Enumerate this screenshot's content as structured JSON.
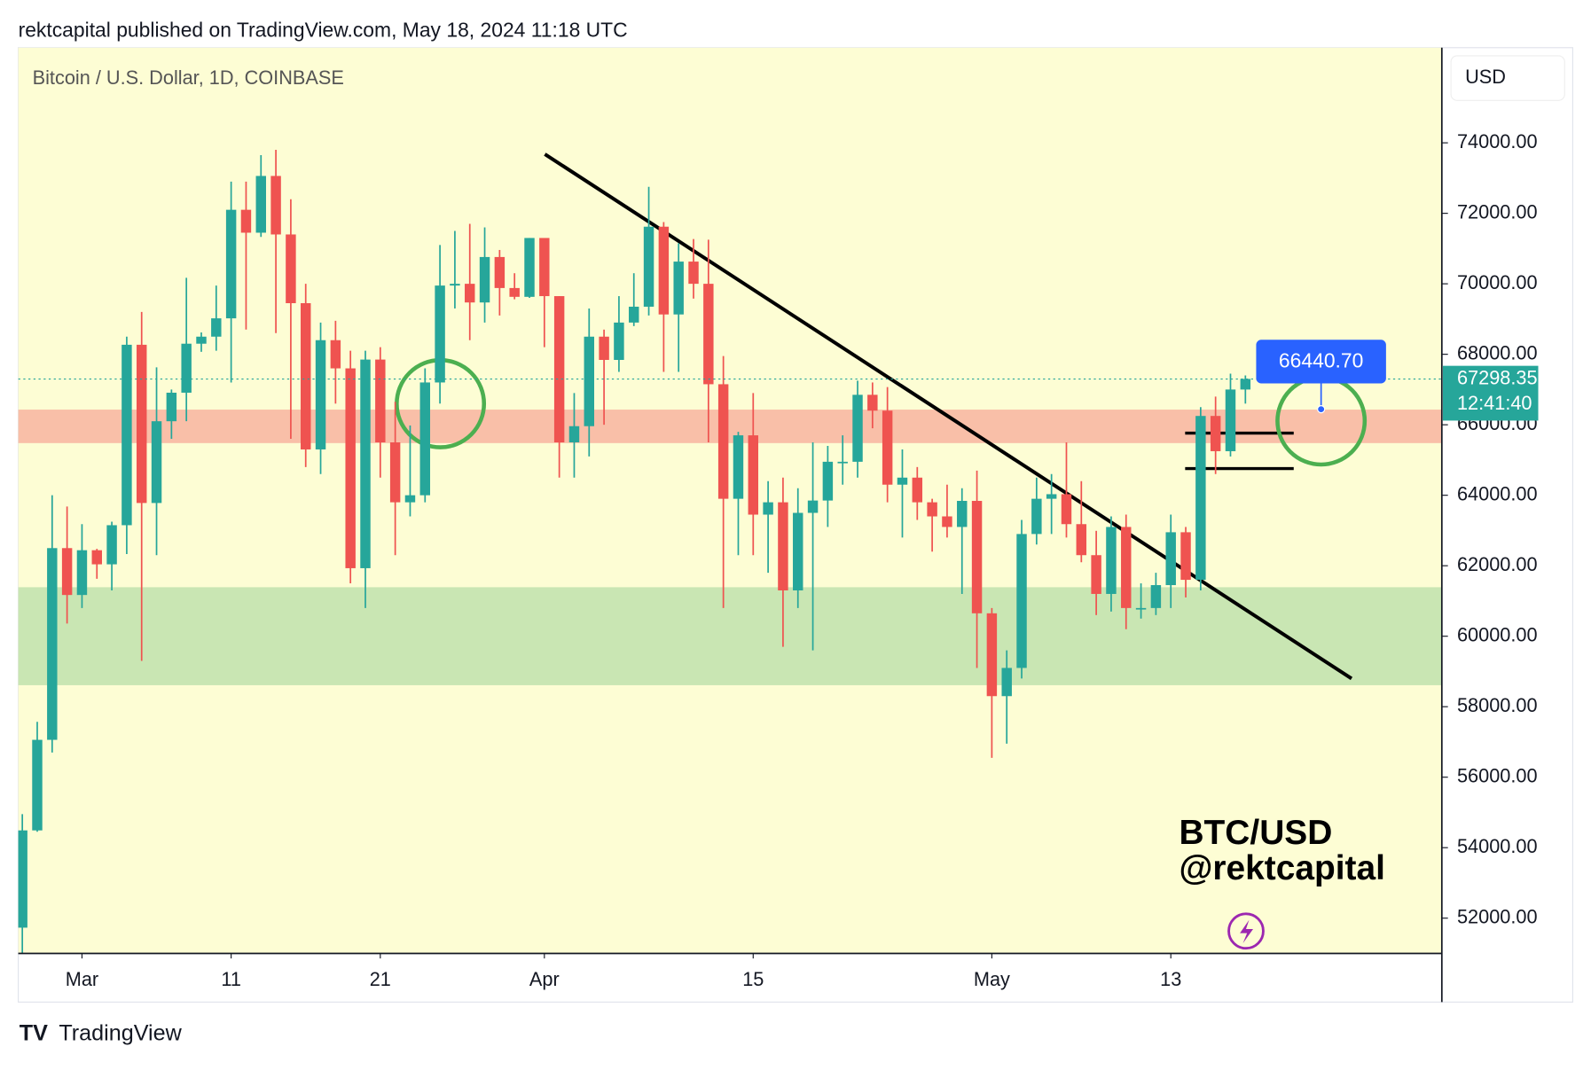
{
  "header": {
    "text": "rektcapital published on TradingView.com, May 18, 2024 11:18 UTC"
  },
  "footer": {
    "brand": "TradingView"
  },
  "chart_data": {
    "type": "candlestick",
    "symbol": "Bitcoin / U.S. Dollar, 1D, COINBASE",
    "currency": "USD",
    "up_color": "#26a69a",
    "down_color": "#ef5350",
    "x": [
      "Feb 26",
      "Feb 27",
      "Feb 28",
      "Feb 29",
      "Mar 1",
      "Mar 2",
      "Mar 3",
      "Mar 4",
      "Mar 5",
      "Mar 6",
      "Mar 7",
      "Mar 8",
      "Mar 9",
      "Mar 10",
      "Mar 11",
      "Mar 12",
      "Mar 13",
      "Mar 14",
      "Mar 15",
      "Mar 16",
      "Mar 17",
      "Mar 18",
      "Mar 19",
      "Mar 20",
      "Mar 21",
      "Mar 22",
      "Mar 23",
      "Mar 24",
      "Mar 25",
      "Mar 26",
      "Mar 27",
      "Mar 28",
      "Mar 29",
      "Mar 30",
      "Mar 31",
      "Apr 1",
      "Apr 2",
      "Apr 3",
      "Apr 4",
      "Apr 5",
      "Apr 6",
      "Apr 7",
      "Apr 8",
      "Apr 9",
      "Apr 10",
      "Apr 11",
      "Apr 12",
      "Apr 13",
      "Apr 14",
      "Apr 15",
      "Apr 16",
      "Apr 17",
      "Apr 18",
      "Apr 19",
      "Apr 20",
      "Apr 21",
      "Apr 22",
      "Apr 23",
      "Apr 24",
      "Apr 25",
      "Apr 26",
      "Apr 27",
      "Apr 28",
      "Apr 29",
      "Apr 30",
      "May 1",
      "May 2",
      "May 3",
      "May 4",
      "May 5",
      "May 6",
      "May 7",
      "May 8",
      "May 9",
      "May 10",
      "May 11",
      "May 12",
      "May 13",
      "May 14",
      "May 15",
      "May 16",
      "May 17",
      "May 18"
    ],
    "open": [
      51730,
      54490,
      57060,
      62500,
      61170,
      62440,
      62040,
      63150,
      68270,
      63780,
      66100,
      66910,
      68300,
      68500,
      69020,
      72100,
      71450,
      73060,
      71400,
      69450,
      65300,
      68400,
      67600,
      61930,
      67850,
      65500,
      63800,
      64000,
      67200,
      69950,
      70000,
      69470,
      70760,
      69880,
      69630,
      71300,
      69650,
      65500,
      65960,
      68500,
      67840,
      68900,
      69350,
      71620,
      69130,
      70630,
      70000,
      67150,
      63900,
      65700,
      63450,
      63800,
      61300,
      63500,
      63850,
      64950,
      64950,
      66850,
      66400,
      64300,
      64500,
      63800,
      63400,
      63100,
      63840,
      60650,
      58300,
      59100,
      62900,
      63900,
      64030,
      63180,
      62300,
      61200,
      63100,
      60800,
      60800,
      61450,
      62950,
      61600,
      66250,
      65250,
      67000
    ],
    "high": [
      54950,
      57570,
      64000,
      63680,
      63180,
      62480,
      63250,
      68500,
      69200,
      67630,
      67000,
      70170,
      68620,
      69950,
      72900,
      72900,
      73650,
      73800,
      72400,
      70000,
      68900,
      68950,
      68100,
      68100,
      68200,
      66650,
      65980,
      67600,
      71100,
      71500,
      71700,
      71600,
      70960,
      70300,
      71300,
      71300,
      69650,
      66900,
      69300,
      68700,
      69650,
      70300,
      72750,
      71750,
      71150,
      71270,
      71250,
      67950,
      65800,
      66900,
      64400,
      64500,
      64200,
      65500,
      65400,
      65700,
      67250,
      67200,
      67070,
      65300,
      64800,
      63900,
      64300,
      64200,
      64700,
      60800,
      59600,
      63300,
      64500,
      64600,
      65500,
      64400,
      62990,
      63400,
      63450,
      61500,
      61800,
      63450,
      63100,
      66500,
      66800,
      67450,
      67400
    ],
    "low": [
      50900,
      54450,
      56700,
      60360,
      60800,
      61630,
      61300,
      62330,
      59300,
      62300,
      65600,
      66100,
      68070,
      68100,
      67200,
      68700,
      71330,
      68600,
      65600,
      64800,
      64600,
      66600,
      61500,
      60800,
      64500,
      62300,
      63400,
      63800,
      66600,
      69300,
      68400,
      68900,
      69100,
      69560,
      69600,
      68200,
      64500,
      64500,
      65100,
      66000,
      67500,
      68800,
      69100,
      67500,
      67500,
      69580,
      65500,
      60800,
      62300,
      62300,
      61800,
      59700,
      60800,
      59600,
      63100,
      64300,
      64500,
      65900,
      63800,
      62800,
      63300,
      62400,
      62800,
      61200,
      59100,
      56550,
      56950,
      58800,
      62600,
      62900,
      62800,
      62100,
      60600,
      60700,
      60200,
      60500,
      60600,
      60800,
      61100,
      61300,
      64600,
      65100,
      66600
    ],
    "close": [
      54490,
      57060,
      62500,
      61170,
      62440,
      62040,
      63150,
      68270,
      63780,
      66100,
      66910,
      68300,
      68500,
      69020,
      72100,
      71450,
      73060,
      71400,
      69450,
      65300,
      68400,
      67600,
      61930,
      67850,
      65500,
      63800,
      64000,
      67200,
      69950,
      70000,
      69470,
      70760,
      69880,
      69630,
      71300,
      69650,
      65500,
      65960,
      68500,
      67840,
      68900,
      69350,
      71620,
      69130,
      70630,
      70000,
      67150,
      63900,
      65700,
      63450,
      63800,
      61300,
      63500,
      63850,
      64950,
      64950,
      66850,
      66400,
      64300,
      64500,
      63800,
      63400,
      63100,
      63840,
      60650,
      58300,
      59100,
      62900,
      63900,
      64030,
      63180,
      62300,
      61200,
      63100,
      60800,
      60800,
      61450,
      62950,
      61600,
      66250,
      65250,
      67000,
      67300
    ],
    "xticks": [
      {
        "value": "Mar 1",
        "label": "Mar"
      },
      {
        "value": "Mar 11",
        "label": "11"
      },
      {
        "value": "Mar 21",
        "label": "21"
      },
      {
        "value": "Apr 1",
        "label": "Apr"
      },
      {
        "value": "Apr 15",
        "label": "15"
      },
      {
        "value": "May 1",
        "label": "May"
      },
      {
        "value": "May 13",
        "label": "13"
      }
    ],
    "ylim": [
      51000,
      76700
    ],
    "yticks": [
      {
        "value": 52000,
        "label": "52000.00"
      },
      {
        "value": 54000,
        "label": "54000.00"
      },
      {
        "value": 56000,
        "label": "56000.00"
      },
      {
        "value": 58000,
        "label": "58000.00"
      },
      {
        "value": 60000,
        "label": "60000.00"
      },
      {
        "value": 62000,
        "label": "62000.00"
      },
      {
        "value": 64000,
        "label": "64000.00"
      },
      {
        "value": 66000,
        "label": "66000.00"
      },
      {
        "value": 68000,
        "label": "68000.00"
      },
      {
        "value": 70000,
        "label": "70000.00"
      },
      {
        "value": 72000,
        "label": "72000.00"
      },
      {
        "value": 74000,
        "label": "74000.00"
      }
    ],
    "zones": [
      {
        "range": [
          65480,
          66430
        ],
        "color": "#f9bfa8"
      },
      {
        "range": [
          58610,
          61390
        ],
        "color": "#c9e6b3"
      }
    ],
    "last_price": 67298.35,
    "countdown": "12:41:40",
    "price_marker": {
      "value": 66440.7,
      "label": "66440.70"
    },
    "annotation": [
      "BTC/USD",
      "@rektcapital"
    ]
  }
}
